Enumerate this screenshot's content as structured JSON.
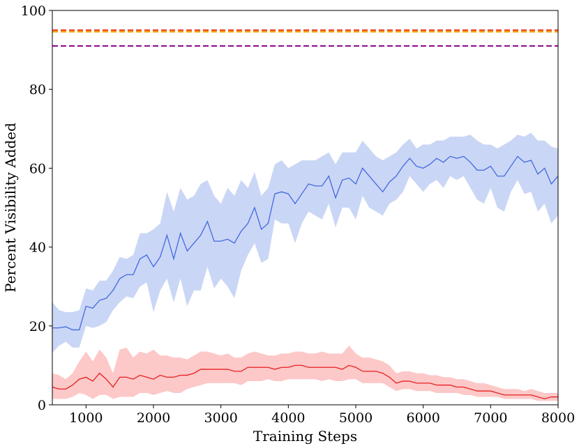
{
  "chart_data": {
    "type": "line",
    "xlabel": "Training Steps",
    "ylabel": "Percent Visibility Added",
    "xlim": [
      500,
      8000
    ],
    "ylim": [
      0,
      100
    ],
    "xticks": [
      1000,
      2000,
      3000,
      4000,
      5000,
      6000,
      7000,
      8000
    ],
    "yticks": [
      0,
      20,
      40,
      60,
      80,
      100
    ],
    "grid": false,
    "series": [
      {
        "color": "#4169e1",
        "band_color": "#b8c8f2",
        "points": [
          [
            500,
            19.5,
            13.2,
            26.0
          ],
          [
            600,
            19.5,
            15.0,
            24.0
          ],
          [
            700,
            19.8,
            16.0,
            23.5
          ],
          [
            800,
            19.0,
            14.5,
            23.5
          ],
          [
            900,
            19.0,
            14.5,
            24.0
          ],
          [
            1000,
            25.0,
            20.0,
            29.5
          ],
          [
            1100,
            24.5,
            19.5,
            29.0
          ],
          [
            1200,
            26.5,
            20.0,
            31.5
          ],
          [
            1300,
            27.0,
            21.0,
            31.5
          ],
          [
            1400,
            29.0,
            24.0,
            34.0
          ],
          [
            1500,
            32.0,
            26.0,
            37.5
          ],
          [
            1600,
            33.0,
            27.5,
            37.0
          ],
          [
            1700,
            33.0,
            27.0,
            38.0
          ],
          [
            1800,
            37.0,
            30.0,
            43.5
          ],
          [
            1900,
            38.0,
            31.0,
            43.5
          ],
          [
            2000,
            35.0,
            23.5,
            44.5
          ],
          [
            2100,
            37.5,
            29.0,
            46.0
          ],
          [
            2200,
            43.0,
            32.0,
            54.0
          ],
          [
            2300,
            37.0,
            26.0,
            49.0
          ],
          [
            2400,
            43.5,
            32.0,
            55.0
          ],
          [
            2500,
            39.0,
            25.0,
            52.0
          ],
          [
            2600,
            41.0,
            29.0,
            53.0
          ],
          [
            2700,
            43.0,
            29.0,
            56.0
          ],
          [
            2800,
            46.5,
            35.0,
            57.0
          ],
          [
            2900,
            41.5,
            29.5,
            53.0
          ],
          [
            3000,
            41.5,
            32.0,
            51.0
          ],
          [
            3100,
            42.0,
            30.0,
            55.0
          ],
          [
            3200,
            41.0,
            27.0,
            53.0
          ],
          [
            3300,
            44.0,
            34.0,
            57.0
          ],
          [
            3400,
            46.0,
            38.0,
            55.0
          ],
          [
            3500,
            50.0,
            41.0,
            59.0
          ],
          [
            3600,
            44.5,
            36.0,
            53.0
          ],
          [
            3700,
            46.0,
            37.0,
            55.0
          ],
          [
            3800,
            53.5,
            47.0,
            61.0
          ],
          [
            3900,
            54.0,
            46.0,
            62.0
          ],
          [
            4000,
            53.5,
            46.0,
            60.0
          ],
          [
            4100,
            51.0,
            41.0,
            61.0
          ],
          [
            4200,
            53.5,
            46.0,
            62.0
          ],
          [
            4300,
            56.0,
            49.0,
            62.0
          ],
          [
            4400,
            55.5,
            48.0,
            62.0
          ],
          [
            4500,
            55.5,
            47.0,
            63.0
          ],
          [
            4600,
            58.0,
            51.0,
            64.0
          ],
          [
            4700,
            52.5,
            45.0,
            61.0
          ],
          [
            4800,
            57.0,
            50.0,
            64.0
          ],
          [
            4900,
            57.5,
            50.0,
            64.0
          ],
          [
            5000,
            56.0,
            47.0,
            64.0
          ],
          [
            5100,
            60.0,
            53.0,
            67.0
          ],
          [
            5200,
            58.0,
            50.0,
            65.0
          ],
          [
            5300,
            56.0,
            49.0,
            63.0
          ],
          [
            5400,
            54.0,
            48.0,
            62.0
          ],
          [
            5500,
            56.5,
            51.0,
            63.0
          ],
          [
            5600,
            58.0,
            52.0,
            64.0
          ],
          [
            5700,
            60.5,
            54.0,
            66.0
          ],
          [
            5800,
            62.5,
            58.0,
            67.5
          ],
          [
            5900,
            60.5,
            56.0,
            65.0
          ],
          [
            6000,
            60.0,
            54.0,
            66.0
          ],
          [
            6100,
            61.0,
            56.0,
            66.0
          ],
          [
            6200,
            62.5,
            57.0,
            67.0
          ],
          [
            6300,
            61.5,
            55.0,
            67.0
          ],
          [
            6400,
            63.0,
            58.0,
            68.0
          ],
          [
            6500,
            62.5,
            57.0,
            68.0
          ],
          [
            6600,
            63.0,
            58.0,
            68.0
          ],
          [
            6700,
            61.5,
            55.0,
            68.5
          ],
          [
            6800,
            59.5,
            52.0,
            67.0
          ],
          [
            6900,
            59.5,
            51.0,
            66.0
          ],
          [
            7000,
            60.5,
            55.0,
            66.0
          ],
          [
            7100,
            58.0,
            50.0,
            65.0
          ],
          [
            7200,
            58.0,
            49.0,
            66.0
          ],
          [
            7300,
            60.5,
            54.0,
            67.0
          ],
          [
            7400,
            63.0,
            57.0,
            68.5
          ],
          [
            7500,
            61.5,
            53.5,
            68.0
          ],
          [
            7600,
            62.0,
            54.0,
            69.0
          ],
          [
            7700,
            58.5,
            49.0,
            67.0
          ],
          [
            7800,
            60.0,
            51.0,
            67.0
          ],
          [
            7900,
            56.0,
            46.0,
            65.5
          ],
          [
            8000,
            58.0,
            48.0,
            65.0
          ]
        ]
      },
      {
        "color": "#e82020",
        "band_color": "#fbb6b6",
        "points": [
          [
            500,
            4.5,
            1.5,
            8.0
          ],
          [
            600,
            4.0,
            1.5,
            7.5
          ],
          [
            700,
            4.0,
            1.5,
            6.5
          ],
          [
            800,
            5.0,
            2.0,
            8.0
          ],
          [
            900,
            6.5,
            3.0,
            11.0
          ],
          [
            1000,
            7.0,
            2.5,
            13.5
          ],
          [
            1100,
            6.0,
            1.5,
            11.0
          ],
          [
            1200,
            8.0,
            2.5,
            14.0
          ],
          [
            1300,
            6.5,
            2.5,
            12.0
          ],
          [
            1400,
            4.5,
            1.5,
            8.0
          ],
          [
            1500,
            7.0,
            2.0,
            14.0
          ],
          [
            1600,
            7.0,
            2.0,
            14.5
          ],
          [
            1700,
            6.5,
            2.0,
            12.0
          ],
          [
            1800,
            7.5,
            3.0,
            13.5
          ],
          [
            1900,
            7.0,
            3.0,
            13.0
          ],
          [
            2000,
            6.5,
            2.5,
            14.0
          ],
          [
            2100,
            7.5,
            3.0,
            12.5
          ],
          [
            2200,
            7.0,
            3.5,
            12.5
          ],
          [
            2300,
            7.0,
            3.0,
            12.0
          ],
          [
            2400,
            7.5,
            3.0,
            12.0
          ],
          [
            2500,
            7.5,
            4.0,
            11.5
          ],
          [
            2600,
            8.0,
            4.5,
            12.5
          ],
          [
            2700,
            9.0,
            5.0,
            13.5
          ],
          [
            2800,
            9.0,
            5.5,
            13.5
          ],
          [
            2900,
            9.0,
            5.5,
            13.0
          ],
          [
            3000,
            9.0,
            5.5,
            12.5
          ],
          [
            3100,
            9.0,
            5.5,
            13.0
          ],
          [
            3200,
            8.5,
            5.5,
            12.0
          ],
          [
            3300,
            8.5,
            5.0,
            12.0
          ],
          [
            3400,
            9.5,
            6.0,
            13.0
          ],
          [
            3500,
            9.5,
            6.0,
            13.5
          ],
          [
            3600,
            9.5,
            6.0,
            13.0
          ],
          [
            3700,
            9.5,
            6.5,
            12.5
          ],
          [
            3800,
            9.0,
            6.0,
            12.5
          ],
          [
            3900,
            9.5,
            6.0,
            13.0
          ],
          [
            4000,
            9.5,
            6.5,
            13.0
          ],
          [
            4100,
            10.0,
            6.5,
            13.5
          ],
          [
            4200,
            10.0,
            6.5,
            13.5
          ],
          [
            4300,
            9.5,
            6.5,
            13.0
          ],
          [
            4400,
            9.5,
            6.5,
            13.0
          ],
          [
            4500,
            9.5,
            6.0,
            13.5
          ],
          [
            4600,
            9.5,
            6.5,
            13.0
          ],
          [
            4700,
            9.5,
            6.0,
            13.0
          ],
          [
            4800,
            9.0,
            6.0,
            13.0
          ],
          [
            4900,
            10.0,
            6.5,
            15.0
          ],
          [
            5000,
            9.5,
            6.5,
            13.0
          ],
          [
            5100,
            8.5,
            5.5,
            12.0
          ],
          [
            5200,
            8.5,
            5.5,
            12.0
          ],
          [
            5300,
            8.5,
            5.5,
            11.5
          ],
          [
            5400,
            8.0,
            5.5,
            11.0
          ],
          [
            5500,
            7.0,
            4.5,
            10.0
          ],
          [
            5600,
            5.5,
            3.5,
            8.0
          ],
          [
            5700,
            6.0,
            4.0,
            8.5
          ],
          [
            5800,
            6.0,
            4.0,
            8.5
          ],
          [
            5900,
            5.5,
            3.5,
            8.0
          ],
          [
            6000,
            5.5,
            3.5,
            8.0
          ],
          [
            6100,
            5.5,
            3.5,
            7.5
          ],
          [
            6200,
            5.0,
            3.0,
            7.5
          ],
          [
            6300,
            5.0,
            3.0,
            7.0
          ],
          [
            6400,
            5.0,
            3.0,
            7.0
          ],
          [
            6500,
            4.5,
            3.0,
            6.5
          ],
          [
            6600,
            4.5,
            2.5,
            6.5
          ],
          [
            6700,
            4.0,
            2.5,
            6.0
          ],
          [
            6800,
            3.5,
            2.0,
            5.5
          ],
          [
            6900,
            3.5,
            2.0,
            5.5
          ],
          [
            7000,
            3.5,
            2.0,
            5.0
          ],
          [
            7100,
            3.0,
            2.0,
            4.5
          ],
          [
            7200,
            2.5,
            1.5,
            4.0
          ],
          [
            7300,
            2.5,
            1.5,
            4.0
          ],
          [
            7400,
            2.5,
            1.5,
            4.0
          ],
          [
            7500,
            2.5,
            1.5,
            3.5
          ],
          [
            7600,
            2.5,
            1.5,
            4.0
          ],
          [
            7700,
            2.0,
            1.0,
            3.5
          ],
          [
            7800,
            1.5,
            1.0,
            3.0
          ],
          [
            7900,
            2.0,
            1.0,
            3.0
          ],
          [
            8000,
            2.0,
            1.0,
            3.0
          ]
        ]
      }
    ],
    "reference_lines": [
      {
        "y": 95.0,
        "color": "#e63c1e",
        "style": "dashed"
      },
      {
        "y": 94.6,
        "color": "#f5a300",
        "style": "dashed"
      },
      {
        "y": 91.0,
        "color": "#8e0f8e",
        "style": "dashed"
      }
    ]
  }
}
